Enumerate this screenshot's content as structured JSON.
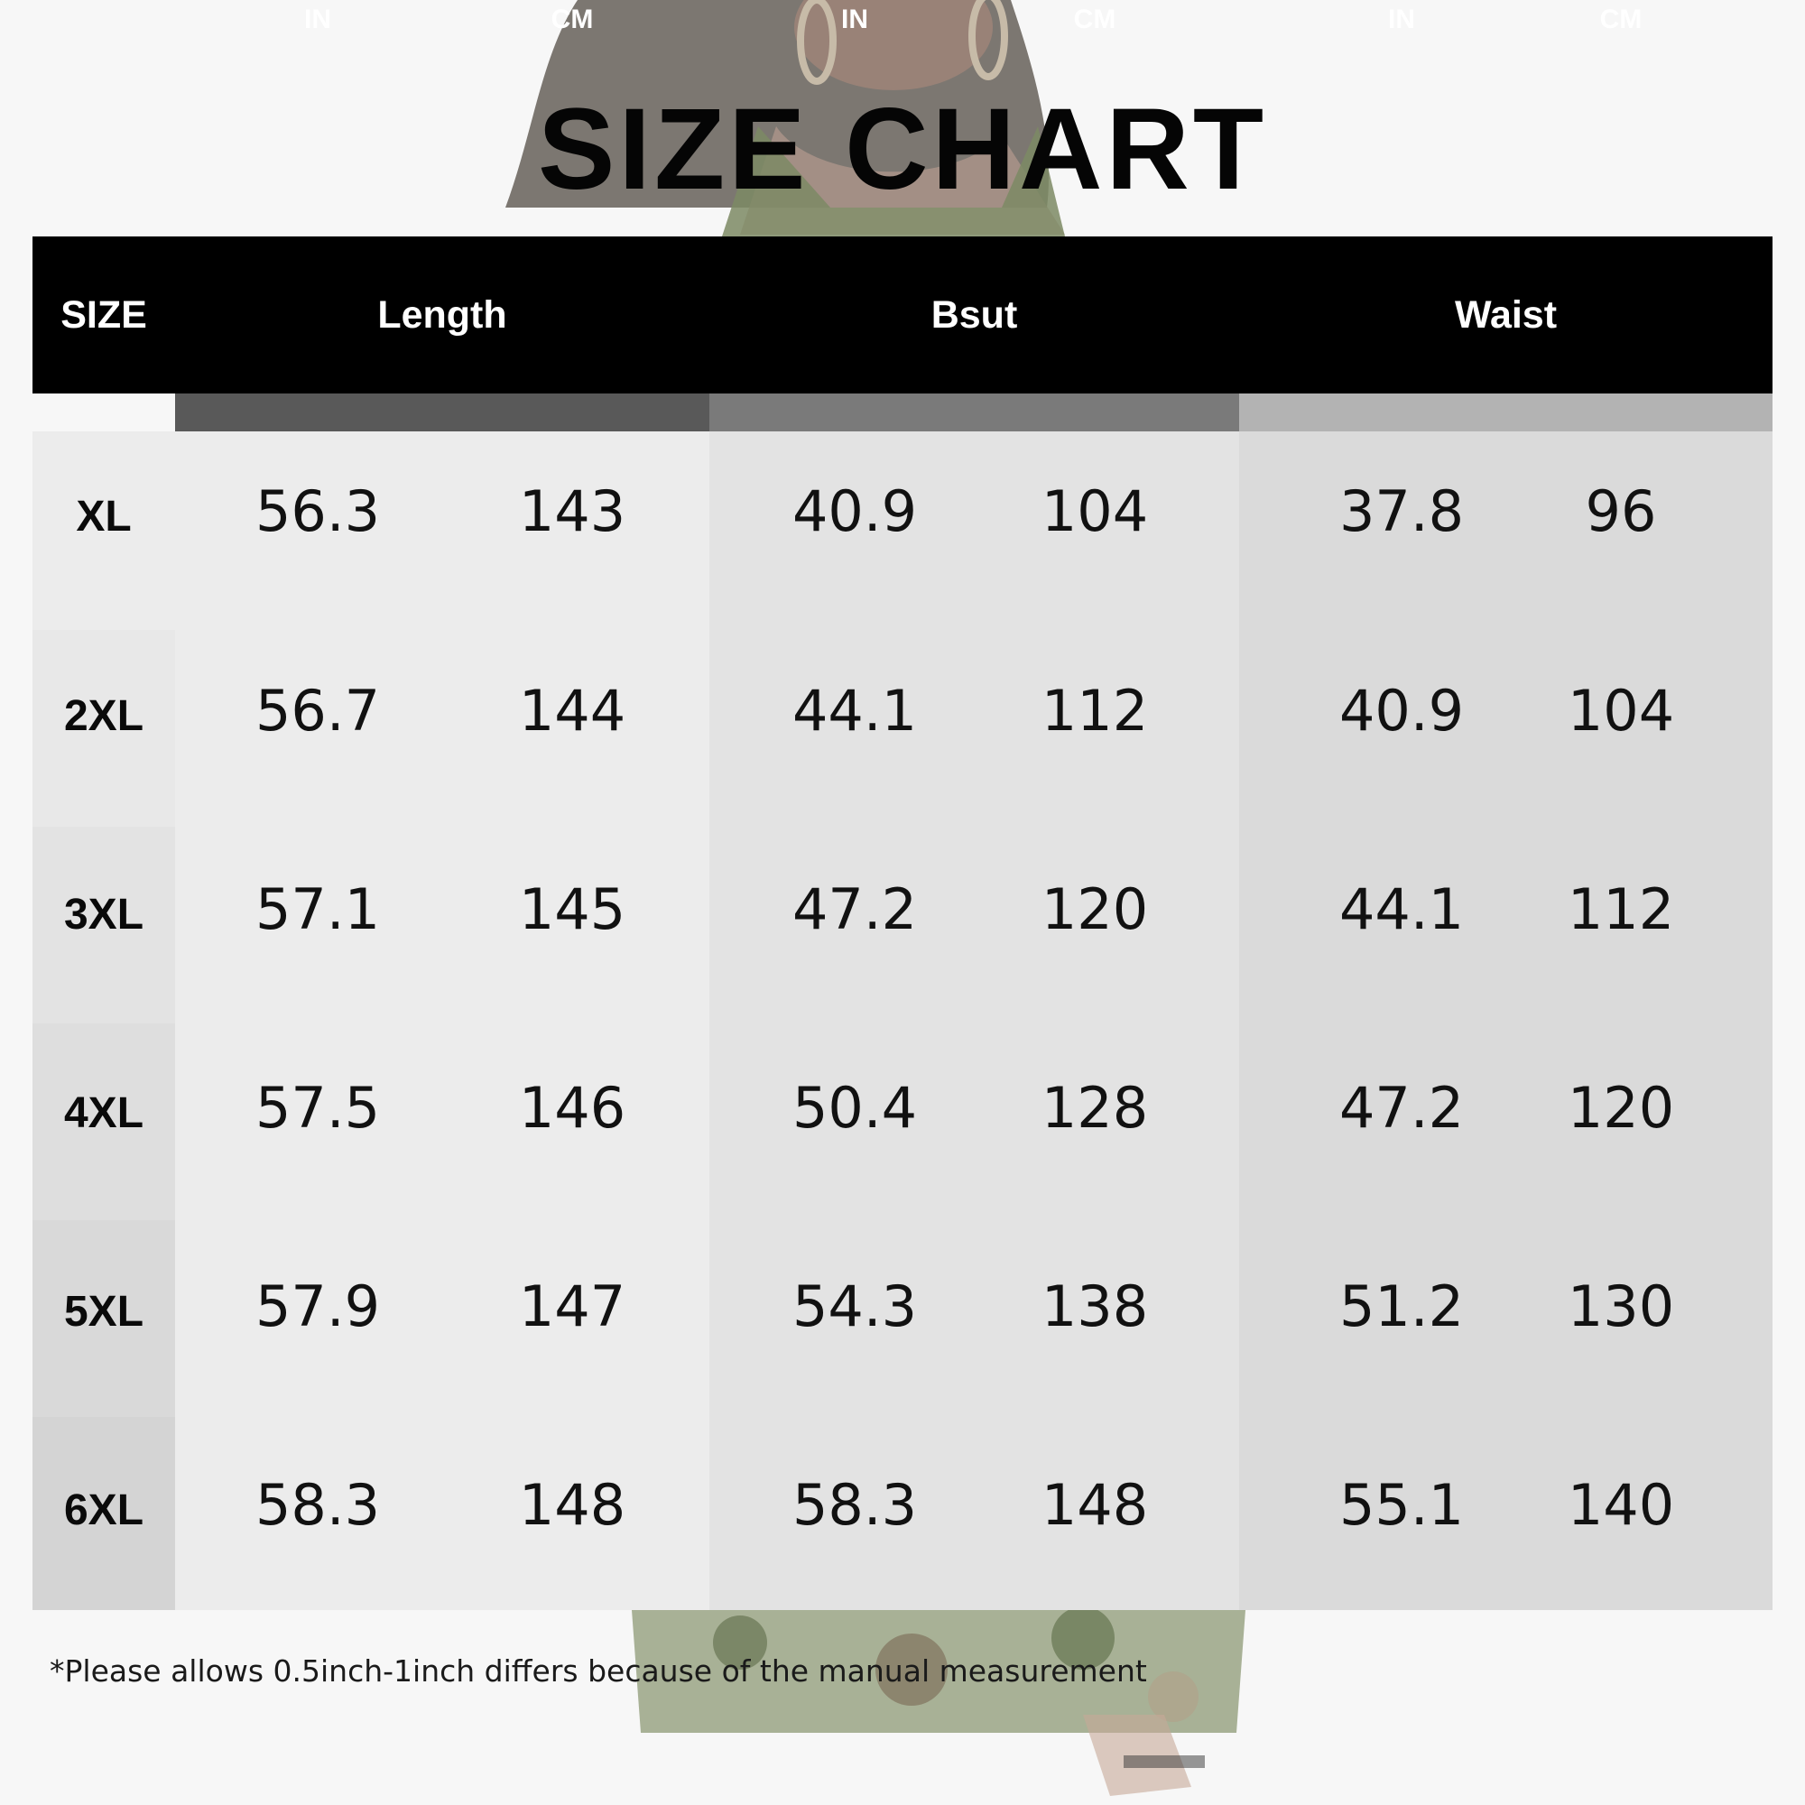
{
  "title": "SIZE CHART",
  "headers": {
    "size": "SIZE",
    "length": "Length",
    "bust": "Bsut",
    "waist": "Waist"
  },
  "units": [
    "IN",
    "CM",
    "IN",
    "CM",
    "IN",
    "CM"
  ],
  "rows": [
    {
      "size": "XL",
      "values": [
        "56.3",
        "143",
        "40.9",
        "104",
        "37.8",
        "96"
      ]
    },
    {
      "size": "2XL",
      "values": [
        "56.7",
        "144",
        "44.1",
        "112",
        "40.9",
        "104"
      ]
    },
    {
      "size": "3XL",
      "values": [
        "57.1",
        "145",
        "47.2",
        "120",
        "44.1",
        "112"
      ]
    },
    {
      "size": "4XL",
      "values": [
        "57.5",
        "146",
        "50.4",
        "128",
        "47.2",
        "120"
      ]
    },
    {
      "size": "5XL",
      "values": [
        "57.9",
        "147",
        "54.3",
        "138",
        "51.2",
        "130"
      ]
    },
    {
      "size": "6XL",
      "values": [
        "58.3",
        "148",
        "58.3",
        "148",
        "55.1",
        "140"
      ]
    }
  ],
  "footnote": "*Please allows 0.5inch-1inch differs because of the manual measurement",
  "colors": {
    "header_bg": "#000000",
    "unit_length_bg": "#595959",
    "unit_bust_bg": "#7a7a7a",
    "unit_waist_bg": "#b3b3b3",
    "length_col_bg": "#ececec",
    "bust_col_bg": "#e3e3e3",
    "waist_col_bg": "#dadada"
  }
}
